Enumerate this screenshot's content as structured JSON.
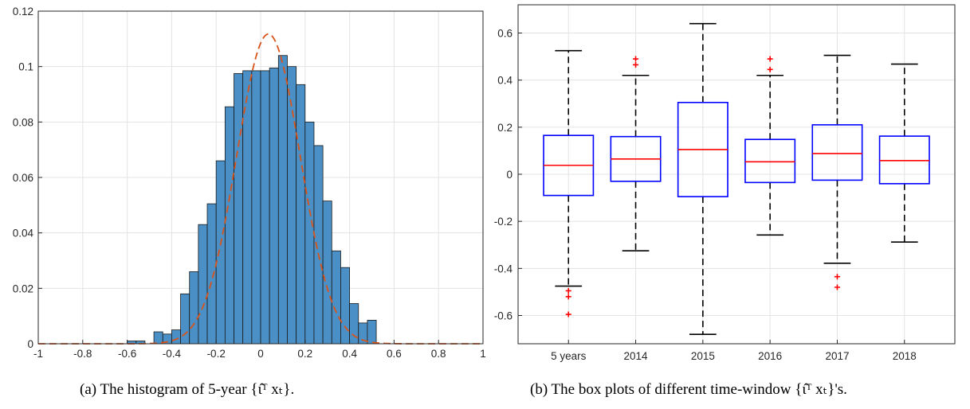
{
  "chart_data": [
    {
      "type": "bar",
      "subplot": "a",
      "caption": "(a) The histogram of 5-year {ι̂ᵀ xₜ}.",
      "xlim": [
        -1,
        1
      ],
      "ylim": [
        0,
        0.12
      ],
      "xticks": [
        "-1",
        "-0.8",
        "-0.6",
        "-0.4",
        "-0.2",
        "0",
        "0.2",
        "0.4",
        "0.6",
        "0.8",
        "1"
      ],
      "xtick_values": [
        -1,
        -0.8,
        -0.6,
        -0.4,
        -0.2,
        0,
        0.2,
        0.4,
        0.6,
        0.8,
        1
      ],
      "yticks": [
        "0",
        "0.02",
        "0.04",
        "0.06",
        "0.08",
        "0.1",
        "0.12"
      ],
      "ytick_values": [
        0,
        0.02,
        0.04,
        0.06,
        0.08,
        0.1,
        0.12
      ],
      "grid": true,
      "bin_width": 0.04,
      "bins": [
        {
          "x0": -0.6,
          "value": 0.001
        },
        {
          "x0": -0.56,
          "value": 0.001
        },
        {
          "x0": -0.52,
          "value": 0
        },
        {
          "x0": -0.48,
          "value": 0.0043
        },
        {
          "x0": -0.44,
          "value": 0.0035
        },
        {
          "x0": -0.4,
          "value": 0.005
        },
        {
          "x0": -0.36,
          "value": 0.018
        },
        {
          "x0": -0.32,
          "value": 0.026
        },
        {
          "x0": -0.28,
          "value": 0.043
        },
        {
          "x0": -0.24,
          "value": 0.0505
        },
        {
          "x0": -0.2,
          "value": 0.066
        },
        {
          "x0": -0.16,
          "value": 0.0855
        },
        {
          "x0": -0.12,
          "value": 0.0975
        },
        {
          "x0": -0.08,
          "value": 0.0985
        },
        {
          "x0": -0.04,
          "value": 0.0985
        },
        {
          "x0": 0.0,
          "value": 0.0985
        },
        {
          "x0": 0.04,
          "value": 0.0995
        },
        {
          "x0": 0.08,
          "value": 0.104
        },
        {
          "x0": 0.12,
          "value": 0.1
        },
        {
          "x0": 0.16,
          "value": 0.0935
        },
        {
          "x0": 0.2,
          "value": 0.08
        },
        {
          "x0": 0.24,
          "value": 0.0715
        },
        {
          "x0": 0.28,
          "value": 0.0515
        },
        {
          "x0": 0.32,
          "value": 0.0335
        },
        {
          "x0": 0.36,
          "value": 0.0275
        },
        {
          "x0": 0.4,
          "value": 0.0145
        },
        {
          "x0": 0.44,
          "value": 0.0075
        },
        {
          "x0": 0.48,
          "value": 0.0085
        }
      ],
      "density_curve": {
        "style": "dashed",
        "mean": 0.035,
        "sd": 0.1428
      },
      "colors": {
        "bar": "#4a90c6",
        "bar_edge": "#1a1a1a",
        "curve": "#d95319"
      }
    },
    {
      "type": "box",
      "subplot": "b",
      "caption": "(b) The box plots of different time-window {ι̂ᵀ xₜ}'s.",
      "ylim": [
        -0.72,
        0.72
      ],
      "yticks": [
        "-0.6",
        "-0.4",
        "-0.2",
        "0",
        "0.2",
        "0.4",
        "0.6"
      ],
      "ytick_values": [
        -0.6,
        -0.4,
        -0.2,
        0,
        0.2,
        0.4,
        0.6
      ],
      "grid": true,
      "categories": [
        "5 years",
        "2014",
        "2015",
        "2016",
        "2017",
        "2018"
      ],
      "boxes": [
        {
          "whisker_low": -0.475,
          "q1": -0.09,
          "median": 0.038,
          "q3": 0.165,
          "whisker_high": 0.525,
          "outliers": [
            -0.495,
            -0.52,
            -0.595
          ]
        },
        {
          "whisker_low": -0.325,
          "q1": -0.03,
          "median": 0.065,
          "q3": 0.16,
          "whisker_high": 0.42,
          "outliers": [
            0.465,
            0.49
          ]
        },
        {
          "whisker_low": -0.68,
          "q1": -0.095,
          "median": 0.105,
          "q3": 0.305,
          "whisker_high": 0.64,
          "outliers": []
        },
        {
          "whisker_low": -0.258,
          "q1": -0.035,
          "median": 0.053,
          "q3": 0.148,
          "whisker_high": 0.42,
          "outliers": [
            0.445,
            0.49
          ]
        },
        {
          "whisker_low": -0.378,
          "q1": -0.025,
          "median": 0.088,
          "q3": 0.21,
          "whisker_high": 0.505,
          "outliers": [
            -0.435,
            -0.48
          ]
        },
        {
          "whisker_low": -0.288,
          "q1": -0.04,
          "median": 0.058,
          "q3": 0.162,
          "whisker_high": 0.468,
          "outliers": []
        }
      ],
      "colors": {
        "box": "#0000ff",
        "median": "#ff0000",
        "whisker": "#000000",
        "outlier": "#ff0000"
      }
    }
  ]
}
